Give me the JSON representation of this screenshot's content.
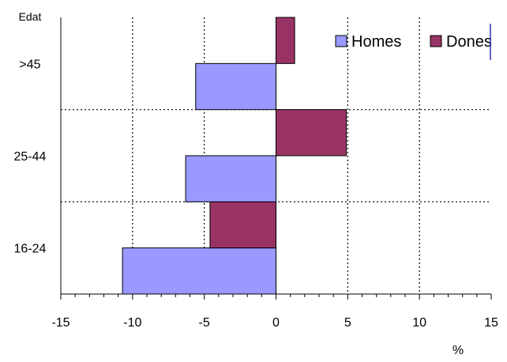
{
  "chart_data": {
    "type": "bar",
    "orientation": "horizontal",
    "categories": [
      "16-24",
      "25-44",
      ">45"
    ],
    "series": [
      {
        "name": "Homes",
        "values": [
          -10.7,
          -6.3,
          -5.6
        ],
        "color": "#9999ff"
      },
      {
        "name": "Dones",
        "values": [
          -4.6,
          4.9,
          1.3
        ],
        "color": "#993366"
      }
    ],
    "xlim": [
      -15,
      15
    ],
    "xticks": [
      -15,
      -10,
      -5,
      0,
      5,
      10,
      15
    ],
    "ylabel": "Edat",
    "xlabel": "%",
    "grid": true,
    "grid_style": "dotted",
    "legend_position": "top-right",
    "legend_layout": "horizontal"
  }
}
